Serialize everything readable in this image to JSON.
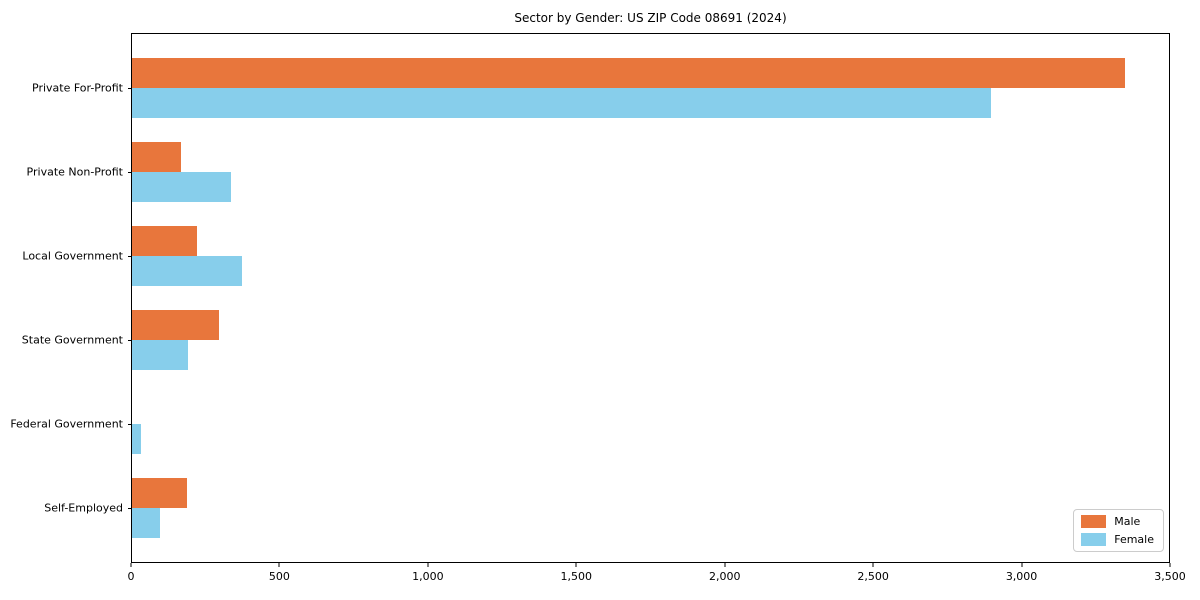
{
  "title": "Sector by Gender: US ZIP Code 08691 (2024)",
  "colors": {
    "male": "#e8763c",
    "female": "#87ceeb"
  },
  "legend": {
    "male_label": "Male",
    "female_label": "Female",
    "position": "lower right"
  },
  "chart_data": {
    "type": "bar",
    "orientation": "horizontal",
    "title": "Sector by Gender: US ZIP Code 08691 (2024)",
    "categories": [
      "Private For-Profit",
      "Private Non-Profit",
      "Local Government",
      "State Government",
      "Federal Government",
      "Self-Employed"
    ],
    "series": [
      {
        "name": "Male",
        "color": "#e8763c",
        "values": [
          3350,
          165,
          220,
          295,
          0,
          185
        ]
      },
      {
        "name": "Female",
        "color": "#87ceeb",
        "values": [
          2900,
          335,
          370,
          190,
          30,
          95
        ]
      }
    ],
    "xlabel": "",
    "ylabel": "",
    "xlim": [
      0,
      3500
    ],
    "xticks": [
      0,
      500,
      1000,
      1500,
      2000,
      2500,
      3000,
      3500
    ],
    "xtick_labels": [
      "0",
      "500",
      "1,000",
      "1,500",
      "2,000",
      "2,500",
      "3,000",
      "3,500"
    ],
    "grid": false,
    "legend_position": "lower right"
  }
}
